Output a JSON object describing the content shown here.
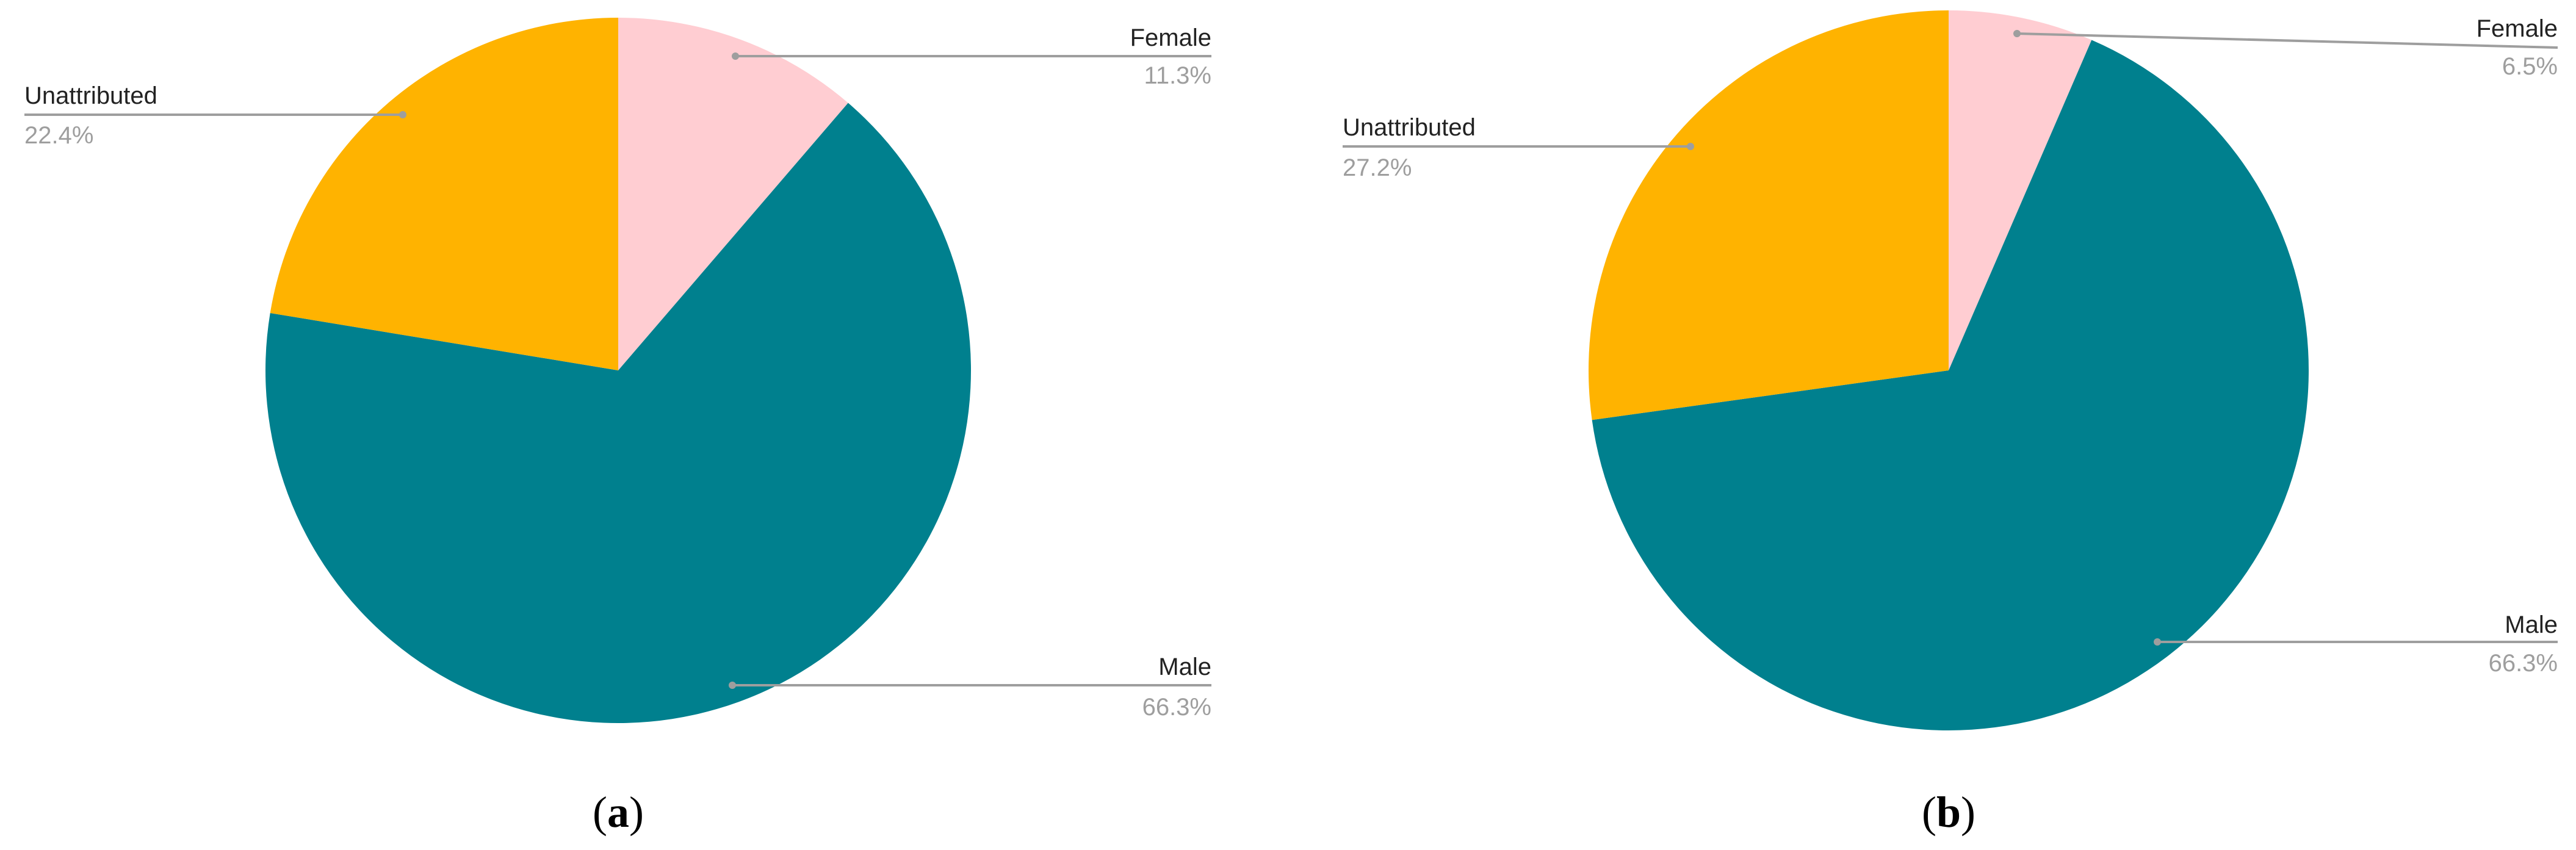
{
  "chart_data": [
    {
      "type": "pie",
      "panel_label": "a",
      "start_angle_deg": 0,
      "direction": "clockwise",
      "slices": [
        {
          "name": "Female",
          "value": 11.3,
          "label": "11.3%",
          "color": "#FFCDD2"
        },
        {
          "name": "Male",
          "value": 66.3,
          "label": "66.3%",
          "color": "#00808E"
        },
        {
          "name": "Unattributed",
          "value": 22.4,
          "label": "22.4%",
          "color": "#FFB300"
        }
      ]
    },
    {
      "type": "pie",
      "panel_label": "b",
      "start_angle_deg": 0,
      "direction": "clockwise",
      "slices": [
        {
          "name": "Female",
          "value": 6.5,
          "label": "6.5%",
          "color": "#FFCDD2"
        },
        {
          "name": "Male",
          "value": 66.3,
          "label": "66.3%",
          "color": "#00808E"
        },
        {
          "name": "Unattributed",
          "value": 27.2,
          "label": "27.2%",
          "color": "#FFB300"
        }
      ]
    }
  ]
}
